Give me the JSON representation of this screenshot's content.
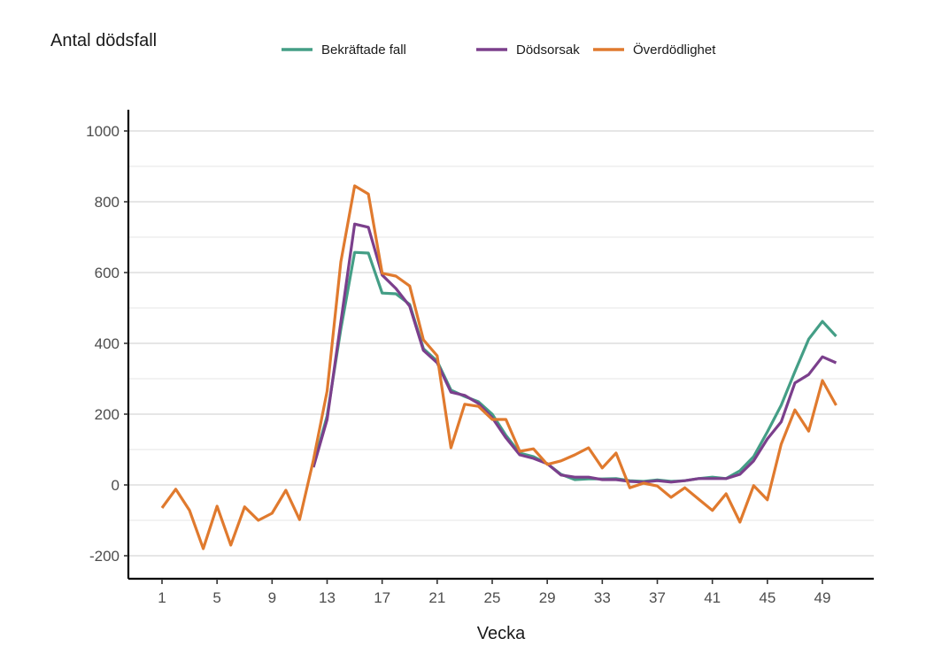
{
  "chart_data": {
    "type": "line",
    "title": "Antal dödsfall",
    "xlabel": "Vecka",
    "ylabel": "Antal dödsfall",
    "xlim": [
      0,
      53
    ],
    "ylim": [
      -260,
      1050
    ],
    "x_ticks": [
      1,
      5,
      9,
      13,
      17,
      21,
      25,
      29,
      33,
      37,
      41,
      45,
      49
    ],
    "y_ticks": [
      -200,
      0,
      200,
      400,
      600,
      800,
      1000
    ],
    "y_minor_gridlines": [
      -100,
      100,
      300,
      500,
      700,
      900
    ],
    "grid": "horizontal",
    "legend_position": "top",
    "series": [
      {
        "name": "Bekräftade fall",
        "color": "#449E86",
        "x": [
          12,
          13,
          14,
          15,
          16,
          17,
          18,
          19,
          20,
          21,
          22,
          23,
          24,
          25,
          26,
          27,
          28,
          29,
          30,
          31,
          32,
          33,
          34,
          35,
          36,
          37,
          38,
          39,
          40,
          41,
          42,
          43,
          44,
          45,
          46,
          47,
          48,
          49,
          50
        ],
        "values": [
          55,
          195,
          440,
          657,
          655,
          542,
          540,
          510,
          385,
          350,
          268,
          250,
          235,
          200,
          140,
          90,
          80,
          60,
          30,
          15,
          17,
          17,
          18,
          12,
          10,
          14,
          10,
          12,
          18,
          22,
          18,
          40,
          80,
          150,
          225,
          320,
          412,
          462,
          420
        ]
      },
      {
        "name": "Dödsorsak",
        "color": "#7B3F8C",
        "x": [
          12,
          13,
          14,
          15,
          16,
          17,
          18,
          19,
          20,
          21,
          22,
          23,
          24,
          25,
          26,
          27,
          28,
          29,
          30,
          31,
          32,
          33,
          34,
          35,
          36,
          37,
          38,
          39,
          40,
          41,
          42,
          43,
          44,
          45,
          46,
          47,
          48,
          49,
          50
        ],
        "values": [
          50,
          185,
          460,
          737,
          728,
          593,
          555,
          505,
          380,
          345,
          262,
          253,
          230,
          190,
          133,
          85,
          75,
          60,
          28,
          22,
          22,
          15,
          15,
          10,
          8,
          12,
          8,
          12,
          18,
          18,
          18,
          30,
          68,
          130,
          178,
          288,
          312,
          362,
          345
        ]
      },
      {
        "name": "Överdödlighet",
        "color": "#E07A2E",
        "x": [
          1,
          2,
          3,
          4,
          5,
          6,
          7,
          8,
          9,
          10,
          11,
          12,
          13,
          14,
          15,
          16,
          17,
          18,
          19,
          20,
          21,
          22,
          23,
          24,
          25,
          26,
          27,
          28,
          29,
          30,
          31,
          32,
          33,
          34,
          35,
          36,
          37,
          38,
          39,
          40,
          41,
          42,
          43,
          44,
          45,
          46,
          47,
          48,
          49,
          50
        ],
        "values": [
          -65,
          -12,
          -72,
          -180,
          -60,
          -170,
          -62,
          -100,
          -80,
          -15,
          -98,
          70,
          265,
          630,
          845,
          822,
          598,
          590,
          562,
          410,
          365,
          105,
          228,
          222,
          185,
          185,
          95,
          102,
          58,
          68,
          85,
          105,
          48,
          90,
          -8,
          5,
          -3,
          -35,
          -8,
          -40,
          -72,
          -25,
          -105,
          -2,
          -42,
          115,
          212,
          152,
          295,
          225
        ]
      }
    ]
  }
}
